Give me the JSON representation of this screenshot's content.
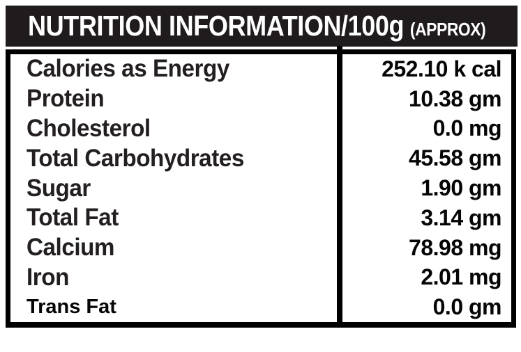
{
  "header": {
    "title": "NUTRITION INFORMATION/100g",
    "suffix": "(APPROX)"
  },
  "table": {
    "rows": [
      {
        "label": "Calories as Energy",
        "value": "252.10 k cal"
      },
      {
        "label": "Protein",
        "value": "10.38 gm"
      },
      {
        "label": "Cholesterol",
        "value": "0.0 mg"
      },
      {
        "label": "Total Carbohydrates",
        "value": "45.58 gm"
      },
      {
        "label": "Sugar",
        "value": "1.90 gm"
      },
      {
        "label": "Total Fat",
        "value": "3.14 gm"
      },
      {
        "label": "Calcium",
        "value": "78.98 mg"
      },
      {
        "label": "Iron",
        "value": "2.01 mg"
      },
      {
        "label": "Trans Fat",
        "value": "0.0 gm"
      }
    ]
  },
  "colors": {
    "page_bg": "#ffffff",
    "header_bg": "#201c1d",
    "header_text": "#ffffff",
    "label_text": "#231f20",
    "value_text": "#050505",
    "border": "#000000"
  }
}
